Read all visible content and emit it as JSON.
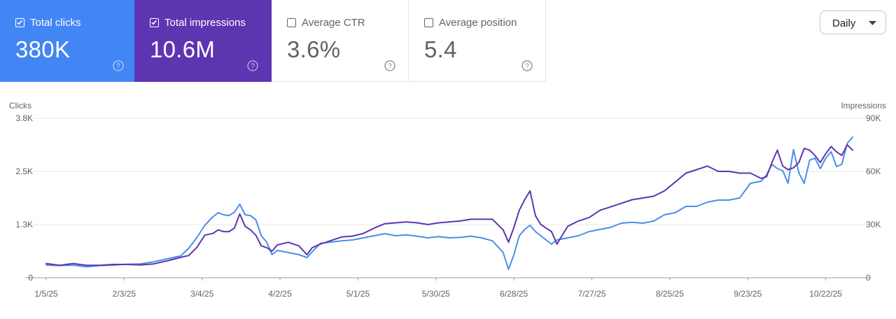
{
  "metrics": [
    {
      "label": "Total clicks",
      "value": "380K",
      "checked": true,
      "color": "#4285f4"
    },
    {
      "label": "Total impressions",
      "value": "10.6M",
      "checked": true,
      "color": "#5e35b1"
    },
    {
      "label": "Average CTR",
      "value": "3.6%",
      "checked": false,
      "color": "#ffffff"
    },
    {
      "label": "Average position",
      "value": "5.4",
      "checked": false,
      "color": "#ffffff"
    }
  ],
  "granularity": {
    "selected": "Daily"
  },
  "chart_data": {
    "type": "line",
    "ylabel_left": "Clicks",
    "ylabel_right": "Impressions",
    "left_ticks": [
      "0",
      "1.3K",
      "2.5K",
      "3.8K"
    ],
    "right_ticks": [
      "0",
      "30K",
      "60K",
      "90K"
    ],
    "ylim_left": [
      0,
      3800
    ],
    "ylim_right": [
      0,
      90000
    ],
    "x_tick_labels": [
      "1/5/25",
      "2/3/25",
      "3/4/25",
      "4/2/25",
      "5/1/25",
      "5/30/25",
      "6/28/25",
      "7/27/25",
      "8/25/25",
      "9/23/25",
      "10/22/25"
    ],
    "x_days": [
      0,
      29,
      58,
      87,
      116,
      145,
      174,
      203,
      232,
      261,
      290
    ],
    "grid": true,
    "series": [
      {
        "name": "Total clicks",
        "axis": "left",
        "color": "#4a8fe7",
        "points": [
          [
            0,
            300
          ],
          [
            5,
            290
          ],
          [
            10,
            300
          ],
          [
            15,
            260
          ],
          [
            20,
            290
          ],
          [
            25,
            300
          ],
          [
            30,
            320
          ],
          [
            35,
            330
          ],
          [
            40,
            380
          ],
          [
            45,
            450
          ],
          [
            50,
            520
          ],
          [
            53,
            700
          ],
          [
            56,
            950
          ],
          [
            59,
            1250
          ],
          [
            62,
            1450
          ],
          [
            64,
            1550
          ],
          [
            66,
            1500
          ],
          [
            68,
            1480
          ],
          [
            70,
            1560
          ],
          [
            72,
            1750
          ],
          [
            74,
            1500
          ],
          [
            76,
            1480
          ],
          [
            78,
            1380
          ],
          [
            80,
            1000
          ],
          [
            82,
            850
          ],
          [
            84,
            550
          ],
          [
            86,
            650
          ],
          [
            90,
            600
          ],
          [
            94,
            550
          ],
          [
            97,
            480
          ],
          [
            99,
            620
          ],
          [
            102,
            820
          ],
          [
            106,
            850
          ],
          [
            110,
            880
          ],
          [
            114,
            900
          ],
          [
            118,
            950
          ],
          [
            122,
            1000
          ],
          [
            126,
            1050
          ],
          [
            130,
            1000
          ],
          [
            134,
            1020
          ],
          [
            138,
            990
          ],
          [
            142,
            950
          ],
          [
            146,
            980
          ],
          [
            150,
            950
          ],
          [
            154,
            960
          ],
          [
            158,
            990
          ],
          [
            162,
            950
          ],
          [
            166,
            880
          ],
          [
            170,
            600
          ],
          [
            172,
            200
          ],
          [
            174,
            550
          ],
          [
            176,
            1000
          ],
          [
            178,
            1150
          ],
          [
            180,
            1250
          ],
          [
            182,
            1100
          ],
          [
            184,
            1000
          ],
          [
            186,
            900
          ],
          [
            188,
            800
          ],
          [
            190,
            900
          ],
          [
            194,
            950
          ],
          [
            198,
            1000
          ],
          [
            202,
            1100
          ],
          [
            206,
            1150
          ],
          [
            210,
            1200
          ],
          [
            214,
            1300
          ],
          [
            218,
            1320
          ],
          [
            222,
            1300
          ],
          [
            226,
            1350
          ],
          [
            230,
            1500
          ],
          [
            234,
            1550
          ],
          [
            238,
            1700
          ],
          [
            242,
            1700
          ],
          [
            246,
            1800
          ],
          [
            250,
            1850
          ],
          [
            254,
            1850
          ],
          [
            258,
            1900
          ],
          [
            262,
            2250
          ],
          [
            266,
            2300
          ],
          [
            268,
            2450
          ],
          [
            270,
            2700
          ],
          [
            272,
            2600
          ],
          [
            274,
            2550
          ],
          [
            276,
            2250
          ],
          [
            278,
            3050
          ],
          [
            280,
            2500
          ],
          [
            282,
            2250
          ],
          [
            284,
            2800
          ],
          [
            286,
            2850
          ],
          [
            288,
            2600
          ],
          [
            290,
            2850
          ],
          [
            292,
            3000
          ],
          [
            294,
            2650
          ],
          [
            296,
            2700
          ],
          [
            298,
            3200
          ],
          [
            300,
            3350
          ]
        ]
      },
      {
        "name": "Total impressions",
        "axis": "right",
        "color": "#5e35b1",
        "points": [
          [
            0,
            8000
          ],
          [
            5,
            7000
          ],
          [
            10,
            8000
          ],
          [
            15,
            7000
          ],
          [
            20,
            7000
          ],
          [
            25,
            7500
          ],
          [
            30,
            7500
          ],
          [
            35,
            7200
          ],
          [
            40,
            7800
          ],
          [
            45,
            9500
          ],
          [
            50,
            11500
          ],
          [
            53,
            12500
          ],
          [
            56,
            17000
          ],
          [
            59,
            24000
          ],
          [
            62,
            25000
          ],
          [
            64,
            27000
          ],
          [
            66,
            26000
          ],
          [
            68,
            26000
          ],
          [
            70,
            28000
          ],
          [
            72,
            36000
          ],
          [
            74,
            29000
          ],
          [
            76,
            27000
          ],
          [
            78,
            24000
          ],
          [
            80,
            18000
          ],
          [
            82,
            17000
          ],
          [
            84,
            15000
          ],
          [
            86,
            18500
          ],
          [
            90,
            20000
          ],
          [
            94,
            18000
          ],
          [
            97,
            13000
          ],
          [
            99,
            17000
          ],
          [
            102,
            19000
          ],
          [
            106,
            21000
          ],
          [
            110,
            23000
          ],
          [
            114,
            23500
          ],
          [
            118,
            25000
          ],
          [
            122,
            28000
          ],
          [
            126,
            30500
          ],
          [
            130,
            31000
          ],
          [
            134,
            31500
          ],
          [
            138,
            31000
          ],
          [
            142,
            30000
          ],
          [
            146,
            31000
          ],
          [
            150,
            31500
          ],
          [
            154,
            32000
          ],
          [
            158,
            33000
          ],
          [
            162,
            33000
          ],
          [
            166,
            33000
          ],
          [
            170,
            27000
          ],
          [
            172,
            20000
          ],
          [
            174,
            28500
          ],
          [
            176,
            38000
          ],
          [
            178,
            44000
          ],
          [
            180,
            49000
          ],
          [
            182,
            35000
          ],
          [
            184,
            30000
          ],
          [
            186,
            28000
          ],
          [
            188,
            26000
          ],
          [
            190,
            19000
          ],
          [
            194,
            29000
          ],
          [
            198,
            32000
          ],
          [
            202,
            34000
          ],
          [
            206,
            38000
          ],
          [
            210,
            40000
          ],
          [
            214,
            42000
          ],
          [
            218,
            44000
          ],
          [
            222,
            45000
          ],
          [
            226,
            46000
          ],
          [
            230,
            49000
          ],
          [
            234,
            54000
          ],
          [
            238,
            59000
          ],
          [
            242,
            61000
          ],
          [
            246,
            63000
          ],
          [
            250,
            60000
          ],
          [
            254,
            60000
          ],
          [
            258,
            59000
          ],
          [
            262,
            59000
          ],
          [
            266,
            56000
          ],
          [
            268,
            57000
          ],
          [
            270,
            65000
          ],
          [
            272,
            72000
          ],
          [
            274,
            63000
          ],
          [
            276,
            61000
          ],
          [
            278,
            62000
          ],
          [
            280,
            65000
          ],
          [
            282,
            73000
          ],
          [
            284,
            72000
          ],
          [
            286,
            69000
          ],
          [
            288,
            65000
          ],
          [
            290,
            70000
          ],
          [
            292,
            74000
          ],
          [
            294,
            71000
          ],
          [
            296,
            69000
          ],
          [
            298,
            75000
          ],
          [
            300,
            72000
          ]
        ]
      }
    ]
  }
}
